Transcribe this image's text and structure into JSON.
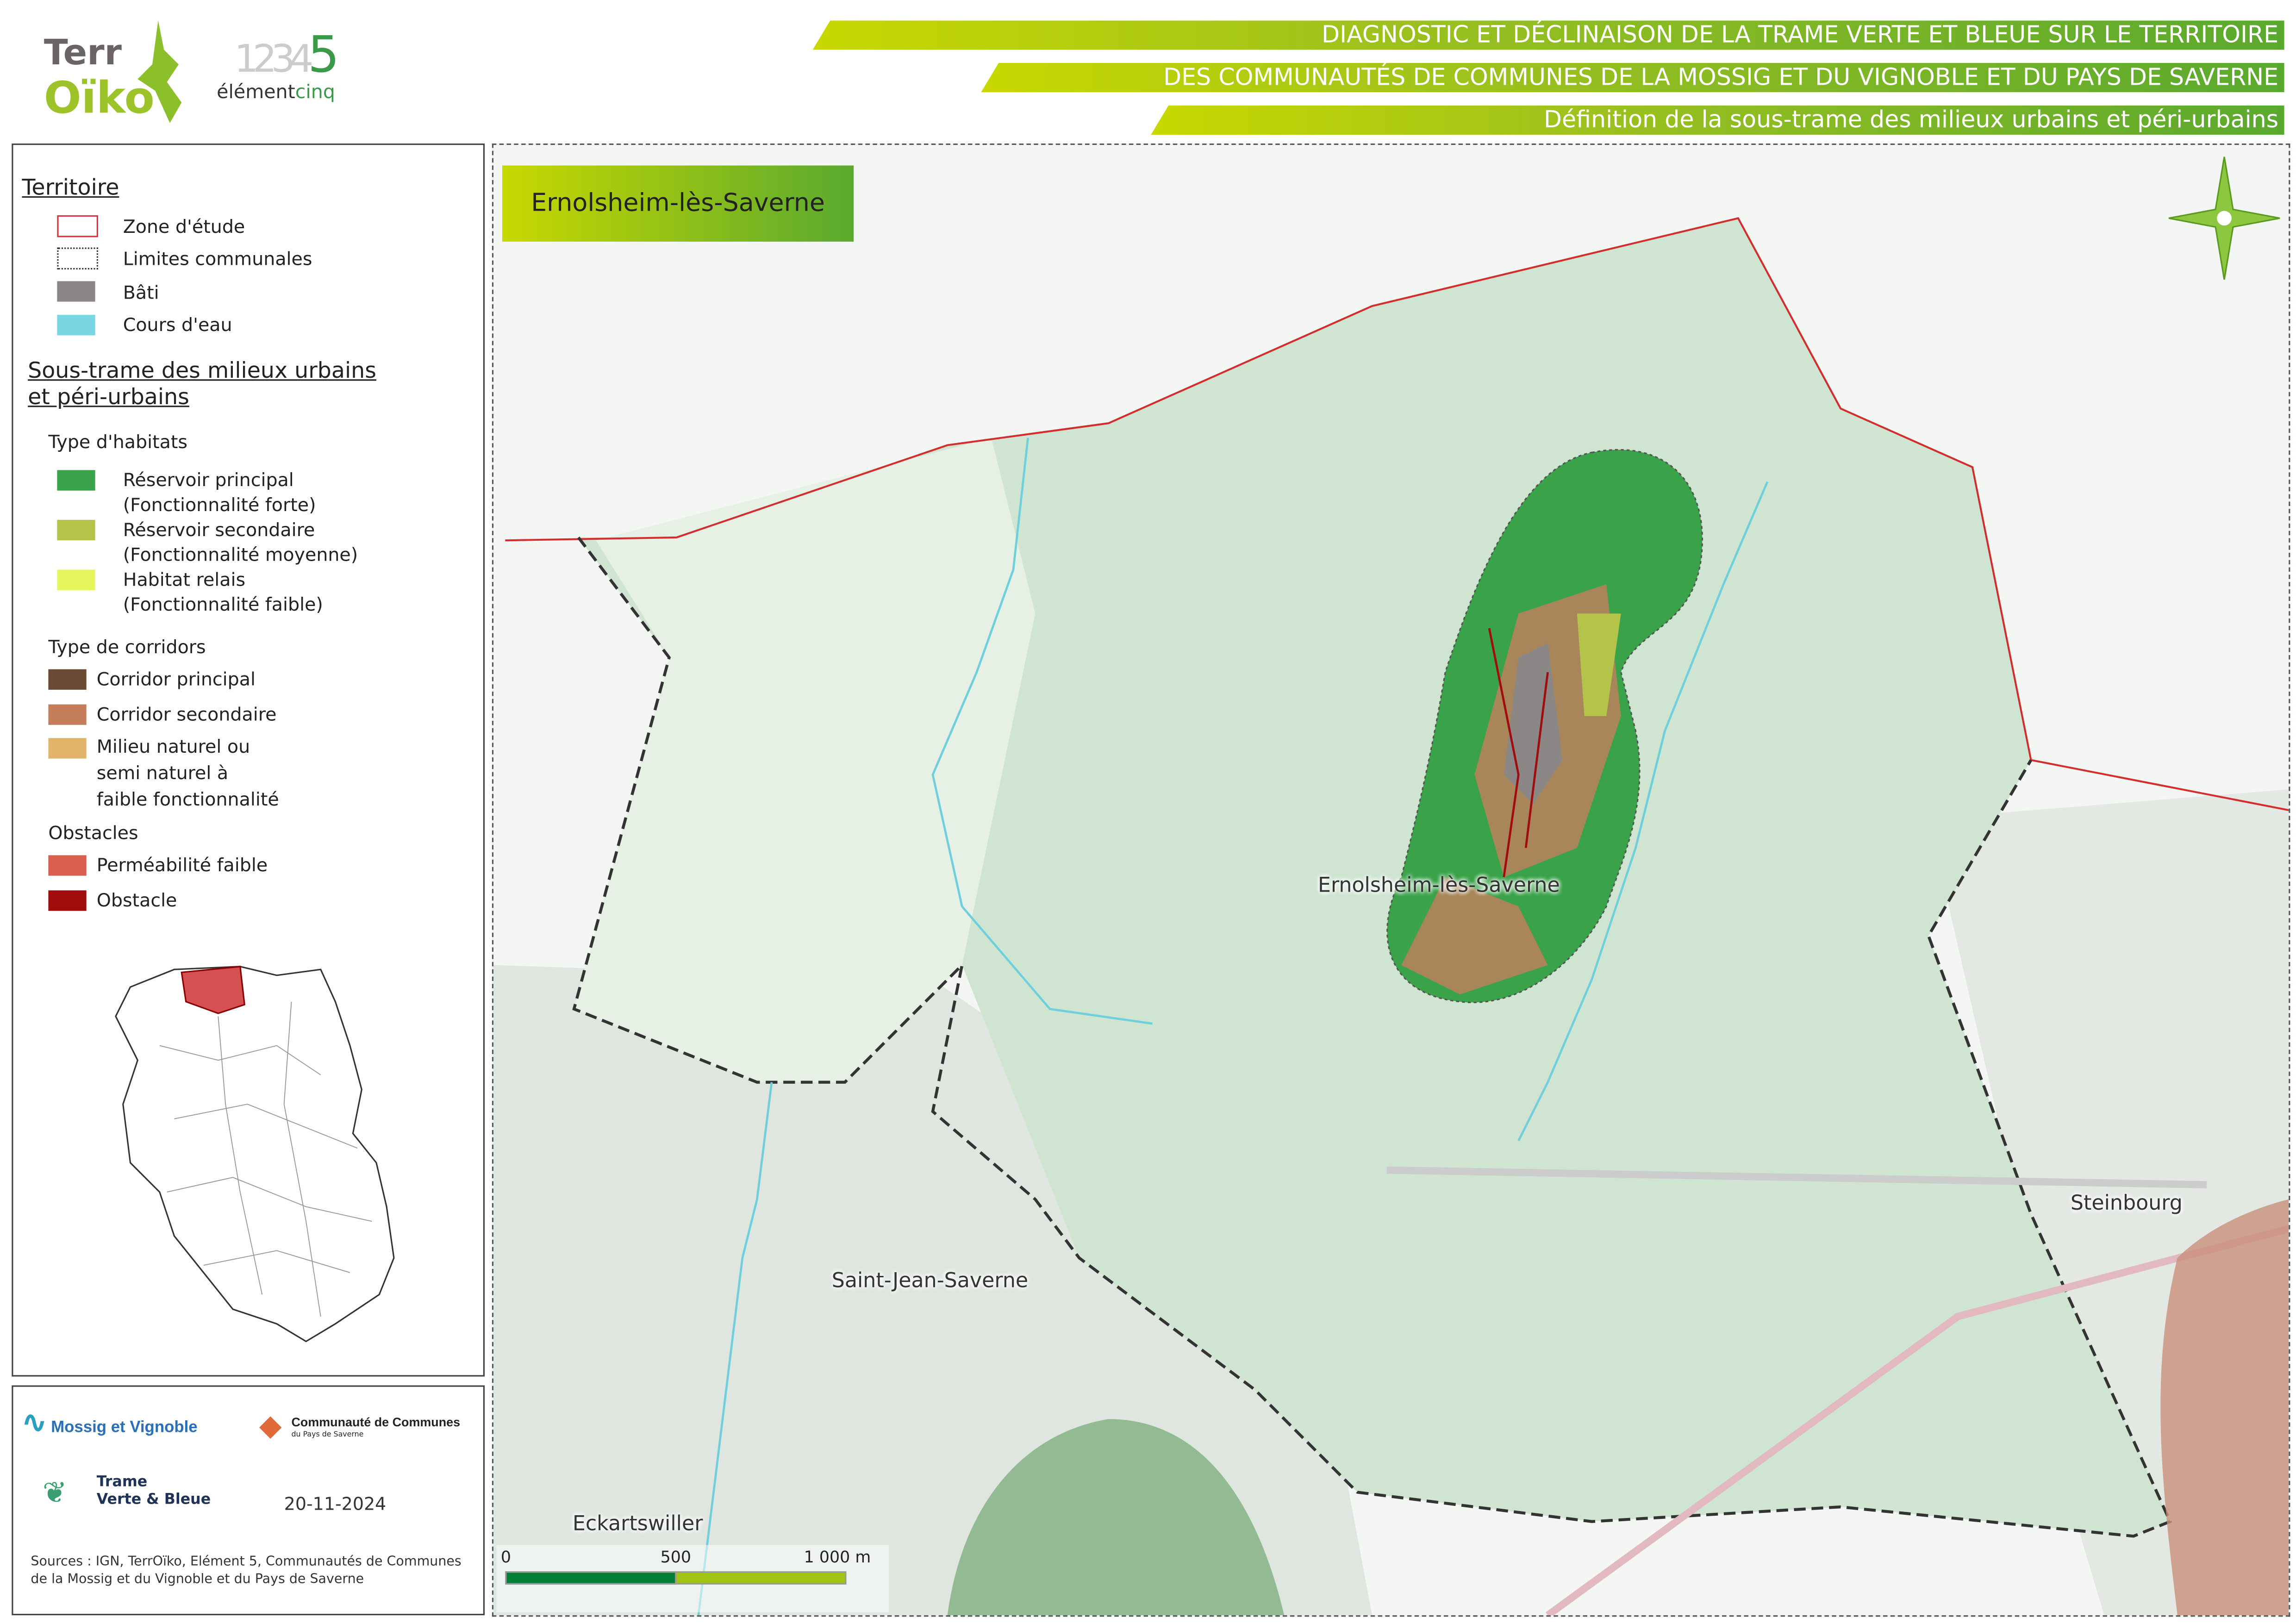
{
  "header": {
    "title_line1": "DIAGNOSTIC ET DÉCLINAISON DE LA TRAME VERTE ET BLEUE SUR LE TERRITOIRE",
    "title_line2": "DES COMMUNAUTÉS DE COMMUNES DE LA MOSSIG ET DU VIGNOBLE ET DU PAYS DE SAVERNE",
    "title_line3": "Définition de la sous-trame des milieux urbains et péri-urbains",
    "logo_terroiko": "TerrOïko",
    "logo_element5": "élémentcinq"
  },
  "map": {
    "commune_title": "Ernolsheim-lès-Saverne",
    "places": [
      "Ernolsheim-lès-Saverne",
      "Saint-Jean-Saverne",
      "Steinbourg",
      "Eckartswiller"
    ],
    "scale": {
      "labels": [
        "0",
        "500",
        "1 000 m"
      ],
      "colors": [
        "#007f36",
        "#a0c416"
      ]
    },
    "north_arrow": "compass-rose-icon"
  },
  "legend": {
    "territoire_title": "Territoire",
    "territoire": [
      {
        "label": "Zone d'étude",
        "color": "#e0313a",
        "style": "outline"
      },
      {
        "label": "Limites communales",
        "color": "#333333",
        "style": "dotted"
      },
      {
        "label": "Bâti",
        "color": "#8c8787"
      },
      {
        "label": "Cours d'eau",
        "color": "#7bd6e3"
      }
    ],
    "soustrame_title": "Sous-trame des milieux urbains et péri-urbains",
    "habitats_title": "Type d'habitats",
    "habitats": [
      {
        "label": "Réservoir principal",
        "sub": "(Fonctionnalité forte)",
        "color": "#3aa34a"
      },
      {
        "label": "Réservoir secondaire",
        "sub": "(Fonctionnalité moyenne)",
        "color": "#b4c34a"
      },
      {
        "label": "Habitat relais",
        "sub": "(Fonctionnalité faible)",
        "color": "#e5f55c"
      }
    ],
    "corridors_title": "Type de corridors",
    "corridors": [
      {
        "label": "Corridor principal",
        "color": "#6b4a35"
      },
      {
        "label": "Corridor secondaire",
        "color": "#c47e5c"
      },
      {
        "label": "Milieu naturel ou semi naturel à faible fonctionnalité",
        "lines": [
          "Milieu naturel ou",
          "semi naturel à",
          "faible fonctionnalité"
        ],
        "color": "#e0b46a"
      }
    ],
    "obstacles_title": "Obstacles",
    "obstacles": [
      {
        "label": "Perméabilité faible",
        "color": "#d9604f"
      },
      {
        "label": "Obstacle",
        "color": "#a10d0d"
      }
    ]
  },
  "footer": {
    "logo_mossig": "Mossig et Vignoble",
    "logo_ccps_line1": "Communauté de Communes",
    "logo_ccps_line2": "du Pays de Saverne",
    "logo_tvb_line1": "Trame",
    "logo_tvb_line2": "Verte & Bleue",
    "date": "20-11-2024",
    "sources": "Sources : IGN, TerrOïko, Elément 5, Communautés de Communes de la Mossig et du Vignoble et du Pays de Saverne"
  }
}
